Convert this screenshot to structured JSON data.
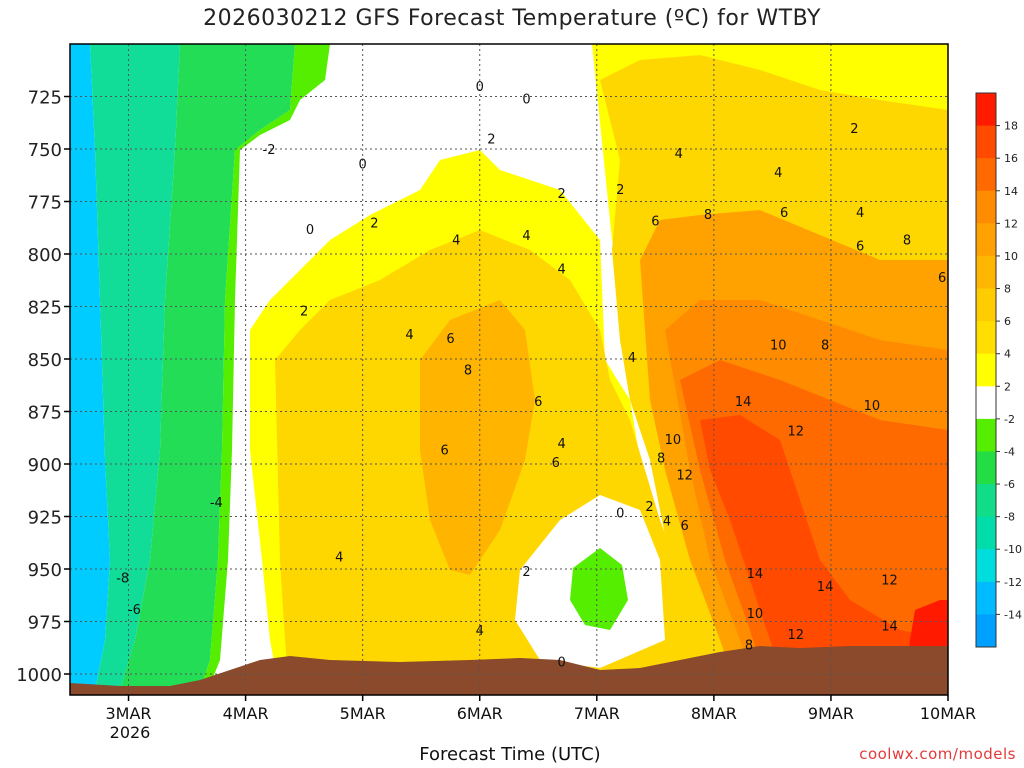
{
  "chart_data": {
    "type": "contour",
    "title": "2026030212 GFS Forecast Temperature (ºC) for WTBY",
    "xlabel": "Forecast Time (UTC)",
    "ylabel": "",
    "credit": "coolwx.com/models",
    "x_ticks": [
      "3MAR",
      "4MAR",
      "5MAR",
      "6MAR",
      "7MAR",
      "8MAR",
      "9MAR",
      "10MAR"
    ],
    "x_year_label": "2026",
    "x_range_days": [
      2.5,
      10.0
    ],
    "y_ticks": [
      "725",
      "750",
      "775",
      "800",
      "825",
      "850",
      "875",
      "900",
      "925",
      "950",
      "975",
      "1000"
    ],
    "y_range_hpa": [
      700,
      1010
    ],
    "colorbar": {
      "labels": [
        "18",
        "16",
        "14",
        "12",
        "10",
        "8",
        "6",
        "4",
        "2",
        "-2",
        "-4",
        "-6",
        "-8",
        "-10",
        "-12",
        "-14"
      ],
      "colors": [
        "#ff1a00",
        "#ff4a00",
        "#ff6a00",
        "#ff8c00",
        "#ffa200",
        "#ffb600",
        "#ffcc00",
        "#ffde00",
        "#ffff00",
        "#ffffff",
        "#55ee00",
        "#22dd44",
        "#11dd88",
        "#00ddaa",
        "#00dddd",
        "#00bbff",
        "#00a0ff"
      ]
    },
    "zones": [
      {
        "name": "cold-air-mass",
        "temp_range_c": [
          -16,
          -2
        ],
        "time_days": [
          2.5,
          4.0
        ],
        "levels_hpa": [
          700,
          1005
        ]
      },
      {
        "name": "warm-core-6mar",
        "peak_temp_c": 8,
        "time_days": [
          5.8,
          6.1
        ],
        "level_hpa": 860
      },
      {
        "name": "warm-core-8mar",
        "peak_temp_c": 14,
        "time_days": [
          8.0,
          8.4
        ],
        "level_hpa": 890
      },
      {
        "name": "cold-pocket-7mar",
        "temp_c": -2,
        "time_days": [
          6.8,
          7.2
        ],
        "level_hpa": 960
      }
    ],
    "contour_labels": [
      {
        "text": "0",
        "t": 5.0,
        "p": 757
      },
      {
        "text": "0",
        "t": 6.0,
        "p": 720
      },
      {
        "text": "0",
        "t": 6.4,
        "p": 726
      },
      {
        "text": "2",
        "t": 6.1,
        "p": 745
      },
      {
        "text": "2",
        "t": 6.7,
        "p": 771
      },
      {
        "text": "2",
        "t": 7.2,
        "p": 769
      },
      {
        "text": "4",
        "t": 6.4,
        "p": 791
      },
      {
        "text": "4",
        "t": 7.7,
        "p": 752
      },
      {
        "text": "-2",
        "t": 4.2,
        "p": 750
      },
      {
        "text": "0",
        "t": 4.55,
        "p": 788
      },
      {
        "text": "2",
        "t": 5.1,
        "p": 785
      },
      {
        "text": "4",
        "t": 5.8,
        "p": 793
      },
      {
        "text": "4",
        "t": 6.7,
        "p": 807
      },
      {
        "text": "2",
        "t": 4.5,
        "p": 827
      },
      {
        "text": "4",
        "t": 5.4,
        "p": 838
      },
      {
        "text": "6",
        "t": 5.75,
        "p": 840
      },
      {
        "text": "8",
        "t": 5.9,
        "p": 855
      },
      {
        "text": "6",
        "t": 6.5,
        "p": 870
      },
      {
        "text": "6",
        "t": 5.7,
        "p": 893
      },
      {
        "text": "4",
        "t": 6.7,
        "p": 890
      },
      {
        "text": "6",
        "t": 6.65,
        "p": 899
      },
      {
        "text": "4",
        "t": 7.3,
        "p": 849
      },
      {
        "text": "6",
        "t": 7.5,
        "p": 784
      },
      {
        "text": "8",
        "t": 7.95,
        "p": 781
      },
      {
        "text": "10",
        "t": 7.65,
        "p": 888
      },
      {
        "text": "8",
        "t": 7.55,
        "p": 897
      },
      {
        "text": "12",
        "t": 7.75,
        "p": 905
      },
      {
        "text": "14",
        "t": 8.25,
        "p": 870
      },
      {
        "text": "12",
        "t": 8.7,
        "p": 884
      },
      {
        "text": "10",
        "t": 8.55,
        "p": 843
      },
      {
        "text": "8",
        "t": 8.95,
        "p": 843
      },
      {
        "text": "6",
        "t": 8.6,
        "p": 780
      },
      {
        "text": "4",
        "t": 8.55,
        "p": 761
      },
      {
        "text": "6",
        "t": 9.25,
        "p": 796
      },
      {
        "text": "4",
        "t": 9.25,
        "p": 780
      },
      {
        "text": "2",
        "t": 9.2,
        "p": 740
      },
      {
        "text": "8",
        "t": 9.65,
        "p": 793
      },
      {
        "text": "6",
        "t": 9.95,
        "p": 811
      },
      {
        "text": "10",
        "t": 9.35,
        "p": 872
      },
      {
        "text": "14",
        "t": 8.35,
        "p": 952
      },
      {
        "text": "14",
        "t": 8.95,
        "p": 958
      },
      {
        "text": "12",
        "t": 9.5,
        "p": 955
      },
      {
        "text": "10",
        "t": 8.35,
        "p": 971
      },
      {
        "text": "8",
        "t": 8.3,
        "p": 986
      },
      {
        "text": "12",
        "t": 8.7,
        "p": 981
      },
      {
        "text": "14",
        "t": 9.5,
        "p": 977
      },
      {
        "text": "4",
        "t": 7.6,
        "p": 927
      },
      {
        "text": "6",
        "t": 7.75,
        "p": 929
      },
      {
        "text": "2",
        "t": 7.45,
        "p": 920
      },
      {
        "text": "0",
        "t": 7.2,
        "p": 923
      },
      {
        "text": "2",
        "t": 6.4,
        "p": 951
      },
      {
        "text": "4",
        "t": 6.0,
        "p": 979
      },
      {
        "text": "0",
        "t": 6.7,
        "p": 994
      },
      {
        "text": "4",
        "t": 4.8,
        "p": 944
      },
      {
        "text": "-4",
        "t": 3.75,
        "p": 918
      },
      {
        "text": "-8",
        "t": 2.95,
        "p": 954
      },
      {
        "text": "-6",
        "t": 3.05,
        "p": 969
      }
    ]
  }
}
